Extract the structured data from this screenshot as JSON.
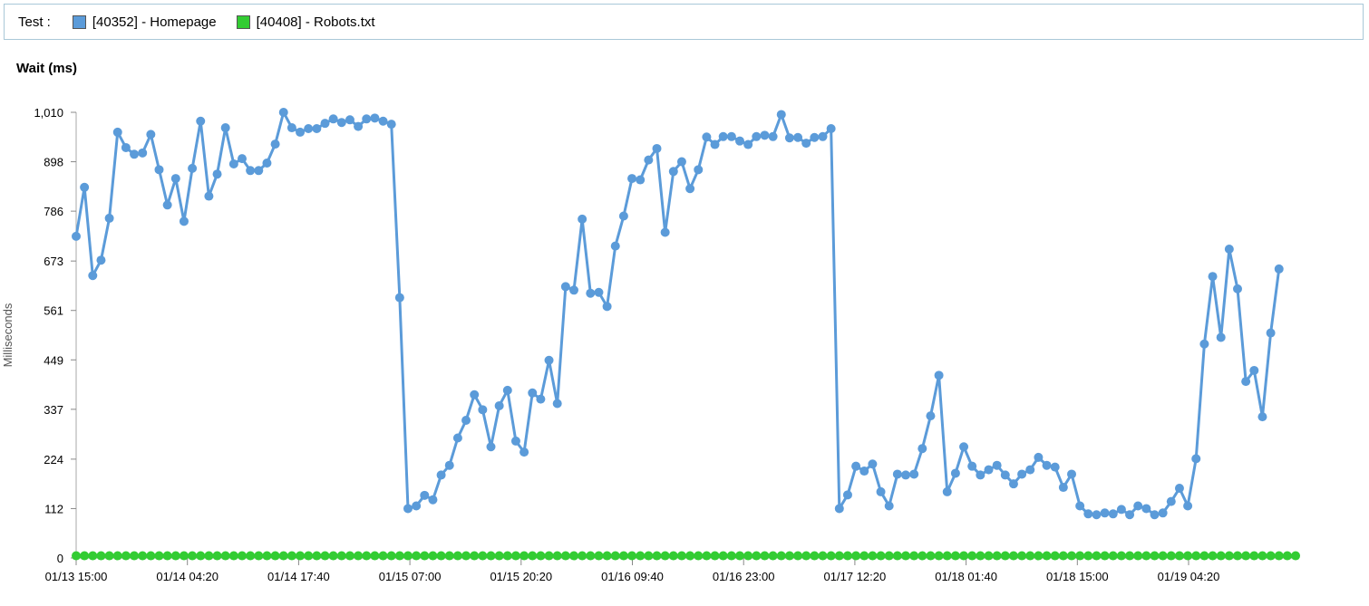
{
  "legend": {
    "label": "Test :",
    "items": [
      {
        "name": "[40352] - Homepage",
        "color": "#5b9bd9"
      },
      {
        "name": "[40408] - Robots.txt",
        "color": "#33cc33"
      }
    ]
  },
  "chart_data": {
    "type": "line",
    "title": "Wait (ms)",
    "ylabel": "Milliseconds",
    "xlabel": "",
    "ylim": [
      0,
      1010
    ],
    "y_ticks": [
      "0",
      "112",
      "224",
      "337",
      "449",
      "561",
      "673",
      "786",
      "898",
      "1,010"
    ],
    "x_ticks": [
      "01/13 15:00",
      "01/14 04:20",
      "01/14 17:40",
      "01/15 07:00",
      "01/15 20:20",
      "01/16 09:40",
      "01/16 23:00",
      "01/17 12:20",
      "01/18 01:40",
      "01/18 15:00",
      "01/19 04:20"
    ],
    "x_start": "01/13 15:00",
    "x_interval_minutes": 60,
    "grid": false,
    "legend_placement": "top",
    "series": [
      {
        "name": "[40352] - Homepage",
        "color": "#5b9bd9",
        "values": [
          729,
          840,
          640,
          675,
          770,
          965,
          930,
          915,
          918,
          960,
          880,
          800,
          860,
          763,
          883,
          990,
          820,
          870,
          975,
          893,
          905,
          878,
          878,
          895,
          938,
          1010,
          975,
          965,
          973,
          973,
          985,
          995,
          987,
          993,
          978,
          995,
          997,
          990,
          983,
          590,
          112,
          118,
          142,
          132,
          188,
          210,
          272,
          312,
          370,
          336,
          252,
          345,
          380,
          265,
          240,
          374,
          360,
          448,
          350,
          615,
          607,
          768,
          600,
          602,
          570,
          707,
          775,
          860,
          857,
          902,
          928,
          738,
          876,
          898,
          837,
          880,
          954,
          937,
          955,
          955,
          945,
          937,
          955,
          958,
          955,
          1005,
          952,
          953,
          940,
          953,
          955,
          973,
          112,
          143,
          208,
          197,
          213,
          150,
          118,
          190,
          188,
          190,
          248,
          322,
          414,
          150,
          192,
          252,
          208,
          188,
          200,
          210,
          188,
          168,
          190,
          200,
          228,
          210,
          206,
          160,
          190,
          118,
          100,
          98,
          102,
          100,
          110,
          98,
          118,
          112,
          98,
          102,
          128,
          158,
          118,
          225,
          485,
          638,
          500,
          700,
          610,
          400,
          425,
          320,
          510,
          655
        ]
      },
      {
        "name": "[40408] - Robots.txt",
        "color": "#33cc33",
        "values": [
          5,
          5,
          5,
          5,
          5,
          5,
          5,
          5,
          5,
          5,
          5,
          5,
          5,
          5,
          5,
          5,
          5,
          5,
          5,
          5,
          5,
          5,
          5,
          5,
          5,
          5,
          5,
          5,
          5,
          5,
          5,
          5,
          5,
          5,
          5,
          5,
          5,
          5,
          5,
          5,
          5,
          5,
          5,
          5,
          5,
          5,
          5,
          5,
          5,
          5,
          5,
          5,
          5,
          5,
          5,
          5,
          5,
          5,
          5,
          5,
          5,
          5,
          5,
          5,
          5,
          5,
          5,
          5,
          5,
          5,
          5,
          5,
          5,
          5,
          5,
          5,
          5,
          5,
          5,
          5,
          5,
          5,
          5,
          5,
          5,
          5,
          5,
          5,
          5,
          5,
          5,
          5,
          5,
          5,
          5,
          5,
          5,
          5,
          5,
          5,
          5,
          5,
          5,
          5,
          5,
          5,
          5,
          5,
          5,
          5,
          5,
          5,
          5,
          5,
          5,
          5,
          5,
          5,
          5,
          5,
          5,
          5,
          5,
          5,
          5,
          5,
          5,
          5,
          5,
          5,
          5,
          5,
          5,
          5,
          5,
          5,
          5,
          5,
          5,
          5,
          5,
          5,
          5,
          5,
          5,
          5,
          5,
          5
        ]
      }
    ]
  }
}
